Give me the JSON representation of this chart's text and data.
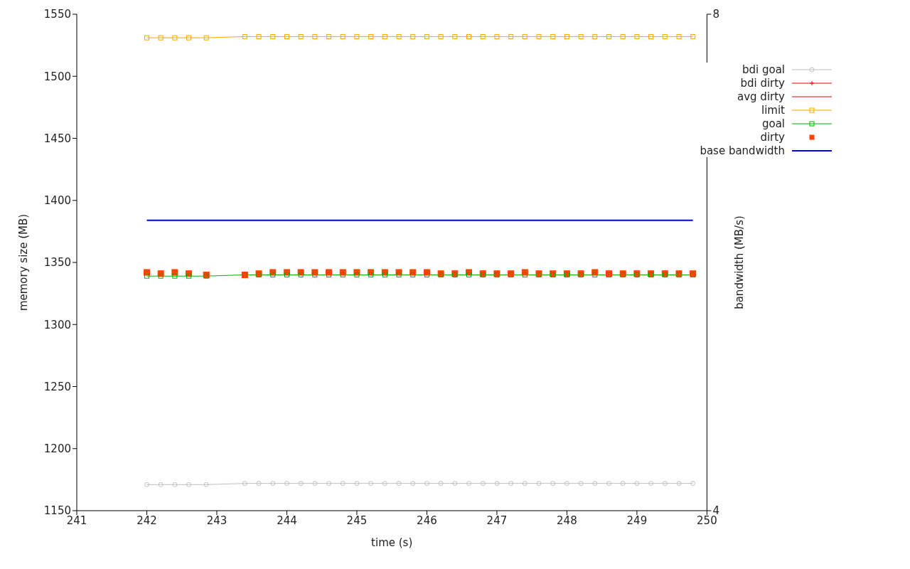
{
  "chart_data": {
    "type": "line",
    "xlabel": "time (s)",
    "ylabel": "memory size (MB)",
    "y2label": "bandwidth (MB/s)",
    "x": [
      242.0,
      242.2,
      242.4,
      242.6,
      242.85,
      243.4,
      243.6,
      243.8,
      244.0,
      244.2,
      244.4,
      244.6,
      244.8,
      245.0,
      245.2,
      245.4,
      245.6,
      245.8,
      246.0,
      246.2,
      246.4,
      246.6,
      246.8,
      247.0,
      247.2,
      247.4,
      247.6,
      247.8,
      248.0,
      248.2,
      248.4,
      248.6,
      248.8,
      249.0,
      249.2,
      249.4,
      249.6,
      249.8
    ],
    "xlim": [
      241,
      250
    ],
    "xticks": [
      241,
      242,
      243,
      244,
      245,
      246,
      247,
      248,
      249,
      250
    ],
    "ylim": [
      1150,
      1550
    ],
    "yticks": [
      1150,
      1200,
      1250,
      1300,
      1350,
      1400,
      1450,
      1500,
      1550
    ],
    "y2lim": [
      4,
      8
    ],
    "y2ticks": [
      4,
      8
    ],
    "grid": false,
    "legend": "top right",
    "line_style": "solid",
    "series": [
      {
        "name": "bdi goal",
        "color": "#c0c0c0",
        "marker": "circle",
        "values": [
          1171,
          1171,
          1171,
          1171,
          1171,
          1172,
          1172,
          1172,
          1172,
          1172,
          1172,
          1172,
          1172,
          1172,
          1172,
          1172,
          1172,
          1172,
          1172,
          1172,
          1172,
          1172,
          1172,
          1172,
          1172,
          1172,
          1172,
          1172,
          1172,
          1172,
          1172,
          1172,
          1172,
          1172,
          1172,
          1172,
          1172,
          1172
        ]
      },
      {
        "name": "bdi dirty",
        "color": "#ff0000",
        "marker": "cross",
        "values": [
          null,
          null,
          null,
          null,
          null,
          null,
          null,
          null,
          null,
          null,
          null,
          null,
          null,
          null,
          null,
          null,
          null,
          null,
          null,
          null,
          null,
          null,
          null,
          null,
          null,
          null,
          null,
          null,
          null,
          null,
          null,
          null,
          null,
          null,
          null,
          null,
          null,
          null
        ]
      },
      {
        "name": "avg dirty",
        "color": "#e00000",
        "marker": "none",
        "values": [
          null,
          null,
          null,
          null,
          null,
          null,
          null,
          null,
          null,
          null,
          null,
          null,
          null,
          null,
          null,
          null,
          null,
          null,
          null,
          null,
          null,
          null,
          null,
          null,
          null,
          null,
          null,
          null,
          null,
          null,
          null,
          null,
          null,
          null,
          null,
          null,
          null,
          null
        ]
      },
      {
        "name": "limit",
        "color": "#ffa500",
        "marker": "square",
        "values": [
          1531,
          1531,
          1531,
          1531,
          1531,
          1532,
          1532,
          1532,
          1532,
          1532,
          1532,
          1532,
          1532,
          1532,
          1532,
          1532,
          1532,
          1532,
          1532,
          1532,
          1532,
          1532,
          1532,
          1532,
          1532,
          1532,
          1532,
          1532,
          1532,
          1532,
          1532,
          1532,
          1532,
          1532,
          1532,
          1532,
          1532,
          1532
        ]
      },
      {
        "name": "goal",
        "color": "#00b000",
        "marker": "square",
        "values": [
          1339,
          1339,
          1339,
          1339,
          1339,
          1340,
          1340,
          1340,
          1340,
          1340,
          1340,
          1340,
          1340,
          1340,
          1340,
          1340,
          1340,
          1340,
          1340,
          1340,
          1340,
          1340,
          1340,
          1340,
          1340,
          1340,
          1340,
          1340,
          1340,
          1340,
          1340,
          1340,
          1340,
          1340,
          1340,
          1340,
          1340,
          1340
        ]
      },
      {
        "name": "dirty",
        "type": "scatter",
        "color": "#ff4500",
        "marker": "square",
        "values": [
          1342,
          1341,
          1342,
          1341,
          1340,
          1340,
          1341,
          1342,
          1342,
          1342,
          1342,
          1342,
          1342,
          1342,
          1342,
          1342,
          1342,
          1342,
          1342,
          1341,
          1341,
          1342,
          1341,
          1341,
          1341,
          1342,
          1341,
          1341,
          1341,
          1341,
          1342,
          1341,
          1341,
          1341,
          1341,
          1341,
          1341,
          1341
        ]
      },
      {
        "name": "base bandwidth",
        "color": "#0000ff",
        "marker": "none",
        "axis": "y2",
        "values": [
          6.34,
          6.34,
          6.34,
          6.34,
          6.34,
          6.34,
          6.34,
          6.34,
          6.34,
          6.34,
          6.34,
          6.34,
          6.34,
          6.34,
          6.34,
          6.34,
          6.34,
          6.34,
          6.34,
          6.34,
          6.34,
          6.34,
          6.34,
          6.34,
          6.34,
          6.34,
          6.34,
          6.34,
          6.34,
          6.34,
          6.34,
          6.34,
          6.34,
          6.34,
          6.34,
          6.34,
          6.34,
          6.34
        ]
      }
    ]
  }
}
